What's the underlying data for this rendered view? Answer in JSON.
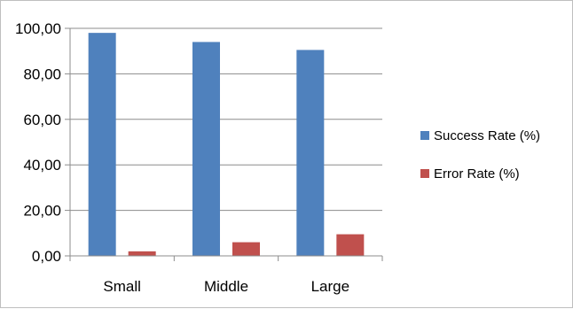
{
  "chart_data": {
    "type": "bar",
    "categories": [
      "Small",
      "Middle",
      "Large"
    ],
    "series": [
      {
        "name": "Success Rate (%)",
        "values": [
          98.0,
          94.0,
          90.5
        ],
        "color": "#4f81bd"
      },
      {
        "name": "Error Rate (%)",
        "values": [
          2.0,
          6.0,
          9.5
        ],
        "color": "#c0504d"
      }
    ],
    "y_ticks": [
      "0,00",
      "20,00",
      "40,00",
      "60,00",
      "80,00",
      "100,00"
    ],
    "ylim": [
      0,
      100
    ],
    "grid": true,
    "legend_position": "right"
  }
}
